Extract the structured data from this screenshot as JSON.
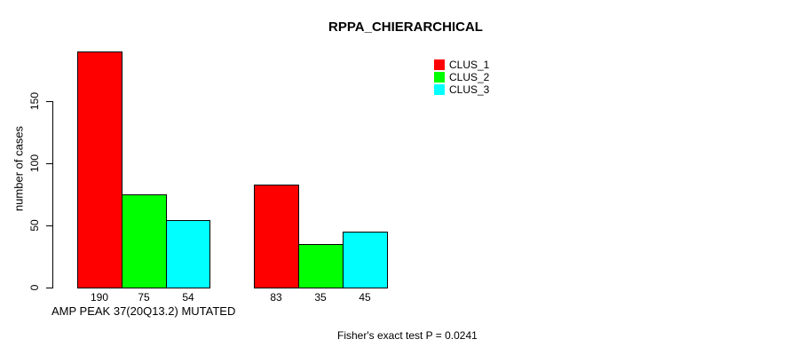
{
  "chart_data": {
    "type": "bar",
    "title": "RPPA_CHIERARCHICAL",
    "ylabel": "number of cases",
    "xlabel": "AMP PEAK 37(20Q13.2) MUTATED",
    "annotation": "Fisher's exact test P = 0.0241",
    "series": [
      {
        "name": "CLUS_1",
        "color": "#ff0000",
        "values": [
          190,
          83
        ]
      },
      {
        "name": "CLUS_2",
        "color": "#00ff00",
        "values": [
          75,
          35
        ]
      },
      {
        "name": "CLUS_3",
        "color": "#00ffff",
        "values": [
          54,
          45
        ]
      }
    ],
    "bar_value_labels": [
      [
        "190",
        "75",
        "54"
      ],
      [
        "83",
        "35",
        "45"
      ]
    ],
    "yticks": [
      0,
      50,
      100,
      150
    ],
    "ylim": [
      0,
      195
    ],
    "grid": false,
    "legend_position": "top-right",
    "bar_border_color": "#000000",
    "text_color": "#000000"
  }
}
